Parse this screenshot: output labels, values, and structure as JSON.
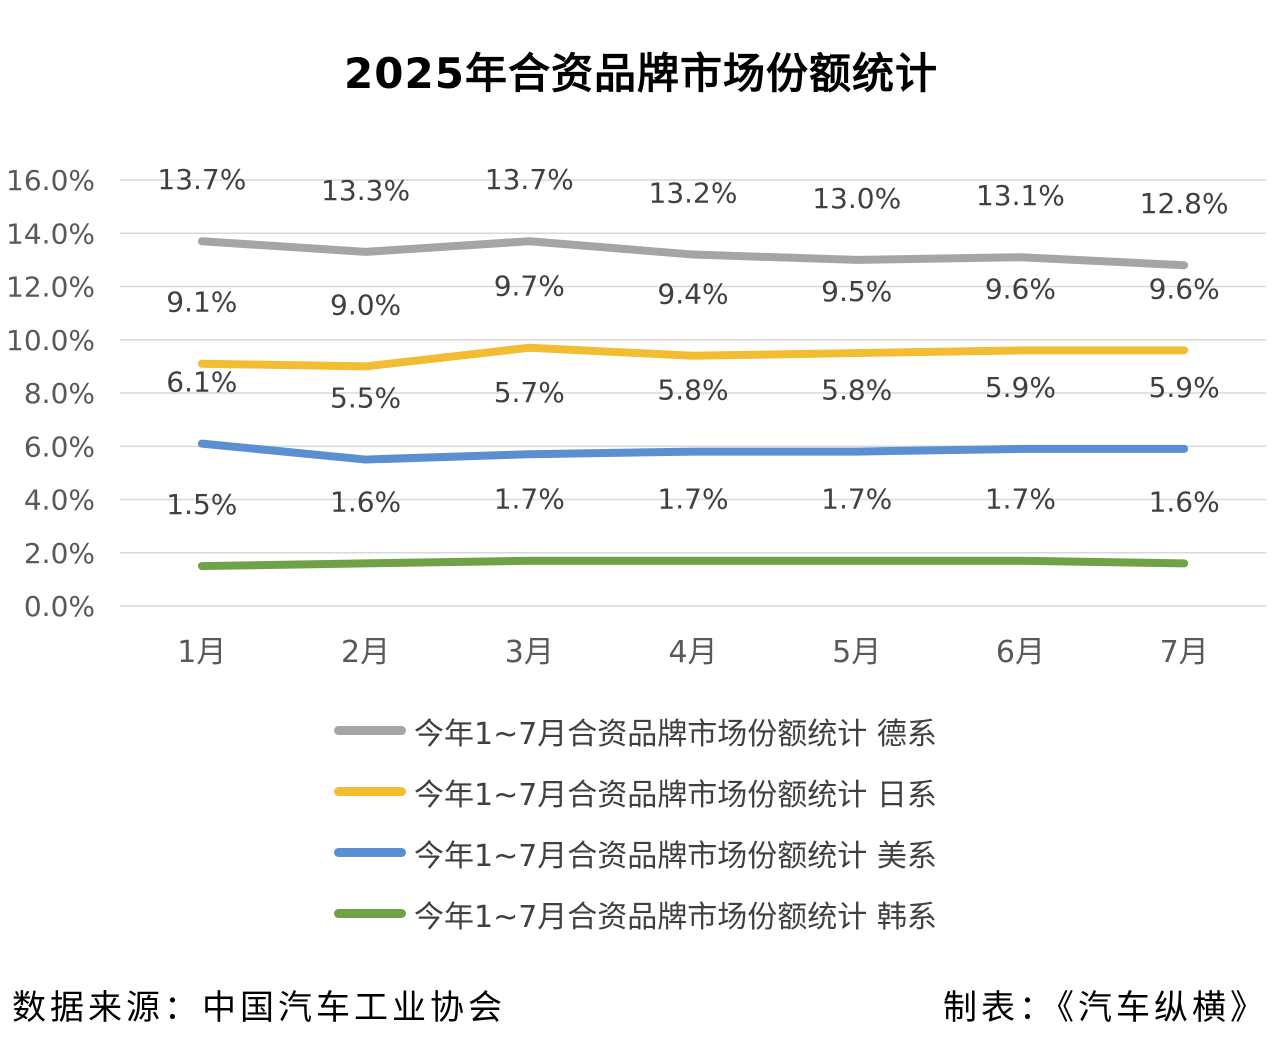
{
  "title": "2025年合资品牌市场份额统计",
  "chart_data": {
    "type": "line",
    "categories": [
      "1月",
      "2月",
      "3月",
      "4月",
      "5月",
      "6月",
      "7月"
    ],
    "y_ticks": [
      "0.0%",
      "2.0%",
      "4.0%",
      "6.0%",
      "8.0%",
      "10.0%",
      "12.0%",
      "14.0%",
      "16.0%"
    ],
    "ylim": [
      0,
      16
    ],
    "grid": true,
    "legend_position": "bottom",
    "series": [
      {
        "name": "今年1~7月合资品牌市场份额统计 德系",
        "color": "#a5a5a5",
        "values": [
          13.7,
          13.3,
          13.7,
          13.2,
          13.0,
          13.1,
          12.8
        ],
        "labels": [
          "13.7%",
          "13.3%",
          "13.7%",
          "13.2%",
          "13.0%",
          "13.1%",
          "12.8%"
        ]
      },
      {
        "name": "今年1~7月合资品牌市场份额统计 日系",
        "color": "#f2bd33",
        "values": [
          9.1,
          9.0,
          9.7,
          9.4,
          9.5,
          9.6,
          9.6
        ],
        "labels": [
          "9.1%",
          "9.0%",
          "9.7%",
          "9.4%",
          "9.5%",
          "9.6%",
          "9.6%"
        ]
      },
      {
        "name": "今年1~7月合资品牌市场份额统计 美系",
        "color": "#5b8fd1",
        "values": [
          6.1,
          5.5,
          5.7,
          5.8,
          5.8,
          5.9,
          5.9
        ],
        "labels": [
          "6.1%",
          "5.5%",
          "5.7%",
          "5.8%",
          "5.8%",
          "5.9%",
          "5.9%"
        ]
      },
      {
        "name": "今年1~7月合资品牌市场份额统计 韩系",
        "color": "#6fa146",
        "values": [
          1.5,
          1.6,
          1.7,
          1.7,
          1.7,
          1.7,
          1.6
        ],
        "labels": [
          "1.5%",
          "1.6%",
          "1.7%",
          "1.7%",
          "1.7%",
          "1.7%",
          "1.6%"
        ]
      }
    ]
  },
  "footer": {
    "source": "数据来源：中国汽车工业协会",
    "maker": "制表：《汽车纵横》"
  }
}
